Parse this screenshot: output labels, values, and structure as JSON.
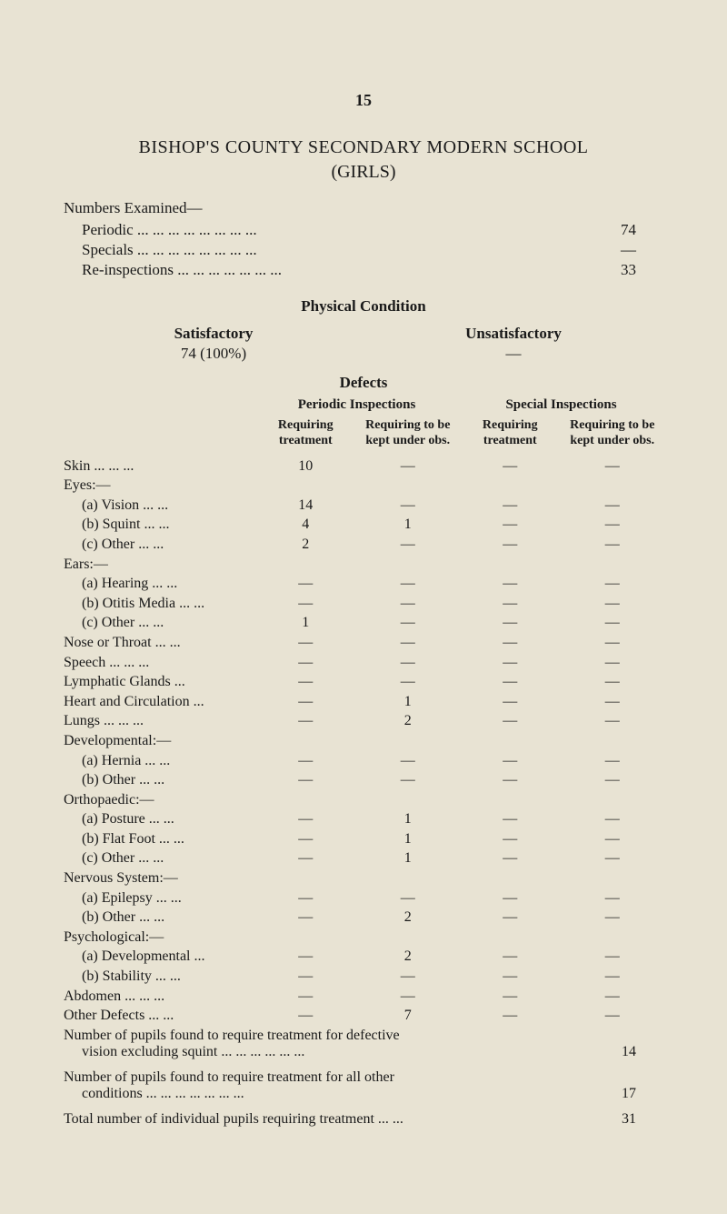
{
  "page_number": "15",
  "title": "BISHOP'S COUNTY SECONDARY MODERN SCHOOL",
  "subtitle": "(GIRLS)",
  "numbers_examined": {
    "label": "Numbers Examined—",
    "rows": [
      {
        "label": "Periodic ...   ...   ...   ...   ...   ...   ...   ...",
        "value": "74"
      },
      {
        "label": "Specials ...   ...   ...   ...   ...   ...   ...   ...",
        "value": "—"
      },
      {
        "label": "Re-inspections   ...   ...   ...   ...   ...   ...   ...",
        "value": "33"
      }
    ]
  },
  "physical_condition": {
    "header": "Physical Condition",
    "satisfactory_label": "Satisfactory",
    "unsatisfactory_label": "Unsatisfactory",
    "satisfactory_value": "74 (100%)",
    "unsatisfactory_value": "—"
  },
  "defects": {
    "header": "Defects",
    "periodic_header": "Periodic Inspections",
    "special_header": "Special Inspections",
    "sub_headers": {
      "c1": "Requiring treatment",
      "c2": "Requiring to be kept under obs.",
      "c3": "Requiring treatment",
      "c4": "Requiring to be kept under obs."
    },
    "rows": [
      {
        "label": "Skin   ...   ...   ...",
        "indent": false,
        "c1": "10",
        "c2": "—",
        "c3": "—",
        "c4": "—"
      },
      {
        "label": "Eyes:—",
        "indent": false,
        "c1": "",
        "c2": "",
        "c3": "",
        "c4": ""
      },
      {
        "label": "(a) Vision   ...   ...",
        "indent": true,
        "c1": "14",
        "c2": "—",
        "c3": "—",
        "c4": "—"
      },
      {
        "label": "(b) Squint   ...   ...",
        "indent": true,
        "c1": "4",
        "c2": "1",
        "c3": "—",
        "c4": "—"
      },
      {
        "label": "(c) Other   ...   ...",
        "indent": true,
        "c1": "2",
        "c2": "—",
        "c3": "—",
        "c4": "—"
      },
      {
        "label": "Ears:—",
        "indent": false,
        "c1": "",
        "c2": "",
        "c3": "",
        "c4": ""
      },
      {
        "label": "(a) Hearing   ...   ...",
        "indent": true,
        "c1": "—",
        "c2": "—",
        "c3": "—",
        "c4": "—"
      },
      {
        "label": "(b) Otitis Media ...   ...",
        "indent": true,
        "c1": "—",
        "c2": "—",
        "c3": "—",
        "c4": "—"
      },
      {
        "label": "(c) Other   ...   ...",
        "indent": true,
        "c1": "1",
        "c2": "—",
        "c3": "—",
        "c4": "—"
      },
      {
        "label": "Nose or Throat   ...   ...",
        "indent": false,
        "c1": "—",
        "c2": "—",
        "c3": "—",
        "c4": "—"
      },
      {
        "label": "Speech   ...   ...   ...",
        "indent": false,
        "c1": "—",
        "c2": "—",
        "c3": "—",
        "c4": "—"
      },
      {
        "label": "Lymphatic Glands   ...",
        "indent": false,
        "c1": "—",
        "c2": "—",
        "c3": "—",
        "c4": "—"
      },
      {
        "label": "Heart and Circulation   ...",
        "indent": false,
        "c1": "—",
        "c2": "1",
        "c3": "—",
        "c4": "—"
      },
      {
        "label": "Lungs   ...   ...   ...",
        "indent": false,
        "c1": "—",
        "c2": "2",
        "c3": "—",
        "c4": "—"
      },
      {
        "label": "Developmental:—",
        "indent": false,
        "c1": "",
        "c2": "",
        "c3": "",
        "c4": ""
      },
      {
        "label": "(a) Hernia   ...   ...",
        "indent": true,
        "c1": "—",
        "c2": "—",
        "c3": "—",
        "c4": "—"
      },
      {
        "label": "(b) Other   ...   ...",
        "indent": true,
        "c1": "—",
        "c2": "—",
        "c3": "—",
        "c4": "—"
      },
      {
        "label": "Orthopaedic:—",
        "indent": false,
        "c1": "",
        "c2": "",
        "c3": "",
        "c4": ""
      },
      {
        "label": "(a) Posture   ...   ...",
        "indent": true,
        "c1": "—",
        "c2": "1",
        "c3": "—",
        "c4": "—"
      },
      {
        "label": "(b) Flat Foot   ...   ...",
        "indent": true,
        "c1": "—",
        "c2": "1",
        "c3": "—",
        "c4": "—"
      },
      {
        "label": "(c) Other   ...   ...",
        "indent": true,
        "c1": "—",
        "c2": "1",
        "c3": "—",
        "c4": "—"
      },
      {
        "label": "Nervous System:—",
        "indent": false,
        "c1": "",
        "c2": "",
        "c3": "",
        "c4": ""
      },
      {
        "label": "(a) Epilepsy   ...   ...",
        "indent": true,
        "c1": "—",
        "c2": "—",
        "c3": "—",
        "c4": "—"
      },
      {
        "label": "(b) Other   ...   ...",
        "indent": true,
        "c1": "—",
        "c2": "2",
        "c3": "—",
        "c4": "—"
      },
      {
        "label": "Psychological:—",
        "indent": false,
        "c1": "",
        "c2": "",
        "c3": "",
        "c4": ""
      },
      {
        "label": "(a) Developmental   ...",
        "indent": true,
        "c1": "—",
        "c2": "2",
        "c3": "—",
        "c4": "—"
      },
      {
        "label": "(b) Stability   ...   ...",
        "indent": true,
        "c1": "—",
        "c2": "—",
        "c3": "—",
        "c4": "—"
      },
      {
        "label": "Abdomen   ...   ...   ...",
        "indent": false,
        "c1": "—",
        "c2": "—",
        "c3": "—",
        "c4": "—"
      },
      {
        "label": "Other Defects   ...   ...",
        "indent": false,
        "c1": "—",
        "c2": "7",
        "c3": "—",
        "c4": "—"
      }
    ]
  },
  "summary": {
    "line1": "Number of pupils found to require treatment for defective",
    "line1_cont_label": "vision excluding squint ...   ...   ...   ...   ...   ...",
    "line1_value": "14",
    "line2": "Number of pupils found to require treatment for all other",
    "line2_cont_label": "conditions   ...   ...   ...   ...   ...   ...   ...",
    "line2_value": "17",
    "line3_label": "Total number of individual pupils requiring treatment ...   ...",
    "line3_value": "31"
  },
  "colors": {
    "background": "#e8e3d3",
    "text": "#1a1a1a"
  }
}
